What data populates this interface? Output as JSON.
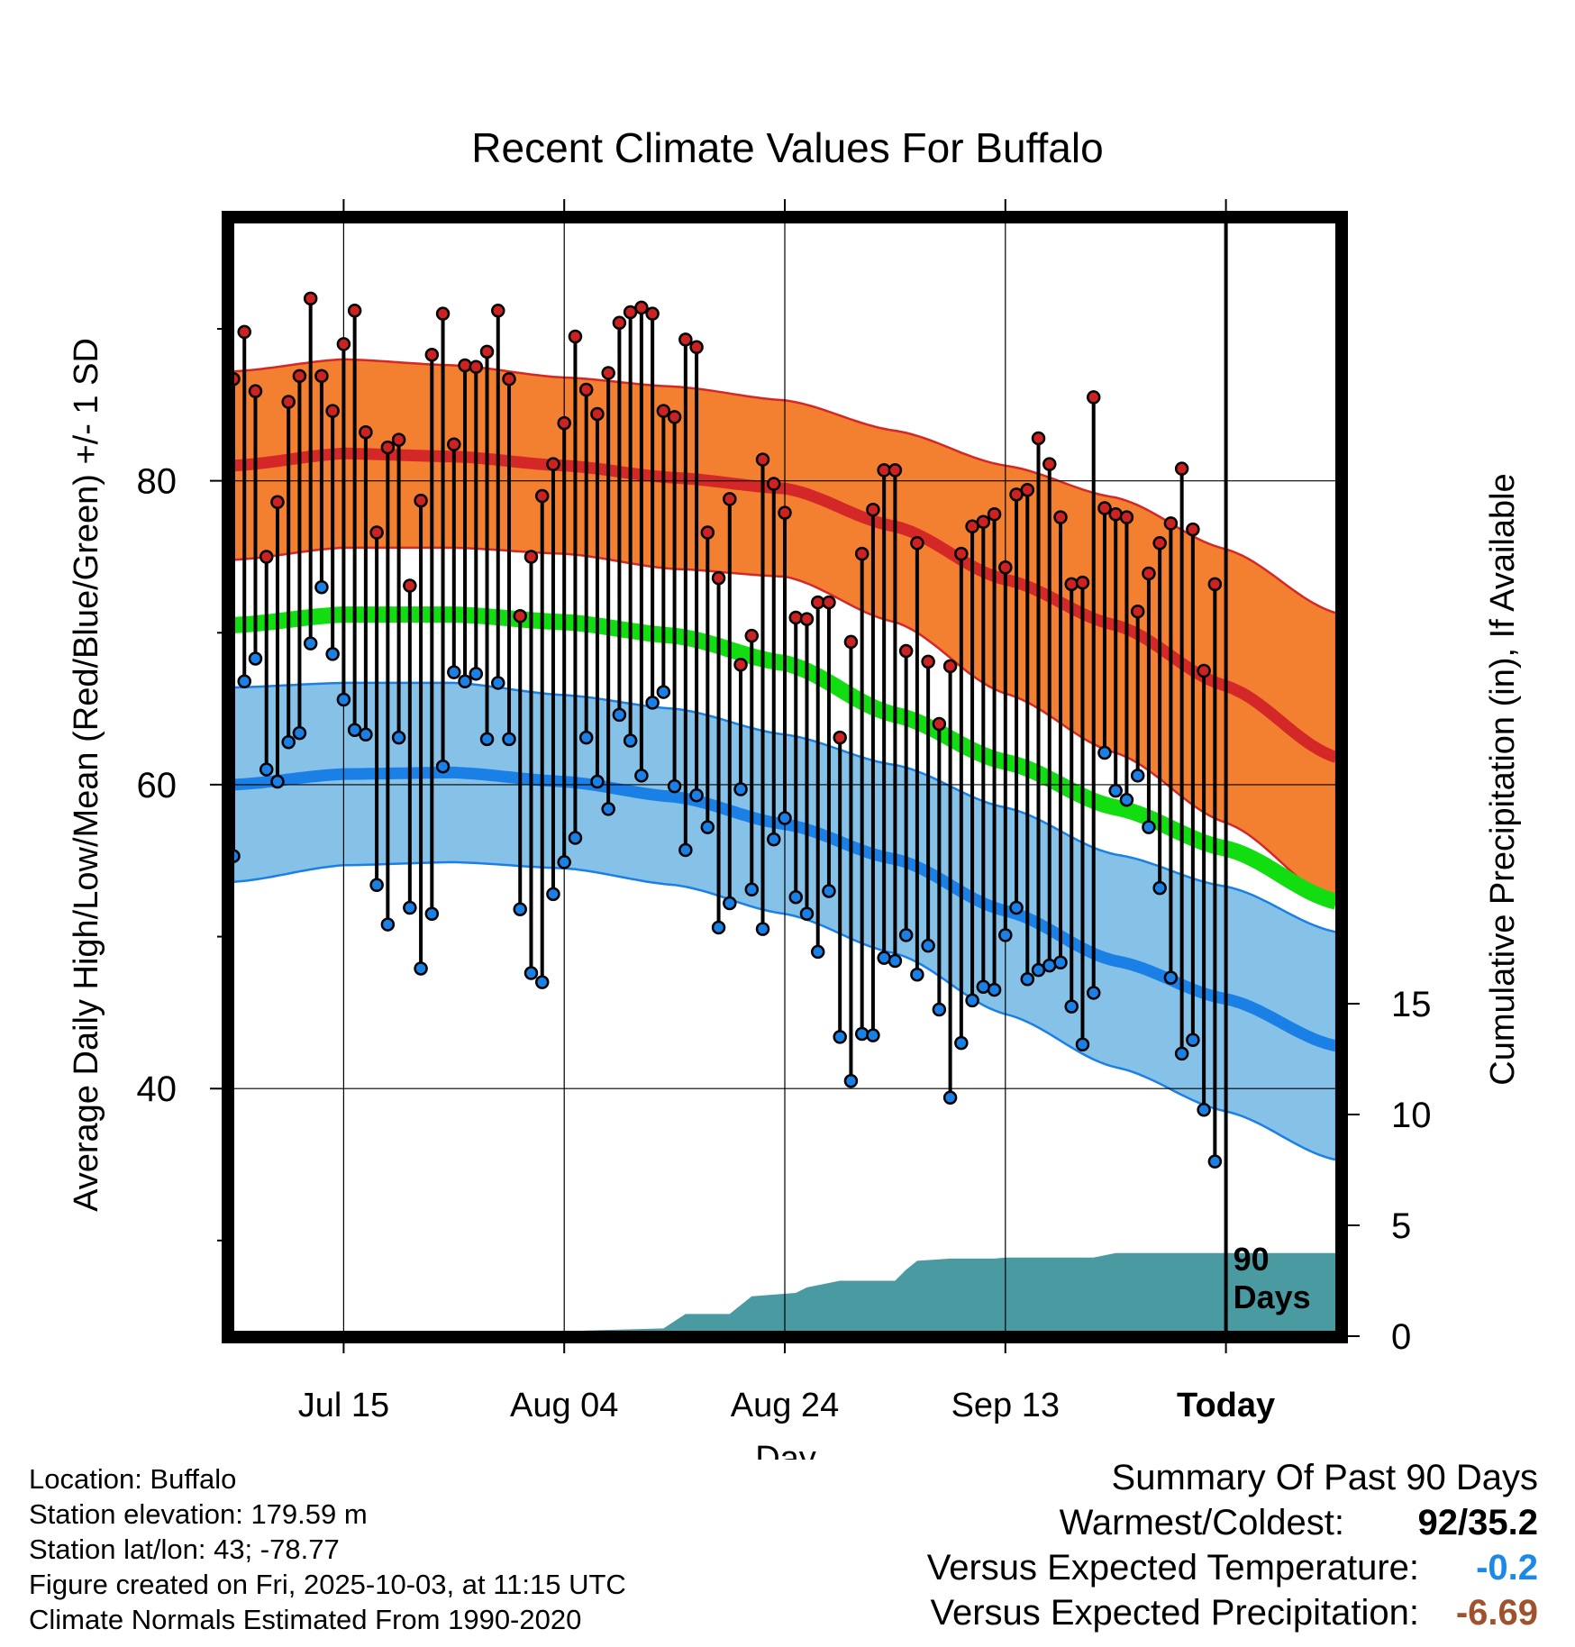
{
  "chart_data": {
    "type": "line",
    "title": "Recent Climate Values For Buffalo",
    "xlabel": "Day",
    "ylabel": "Average Daily High/Low/Mean (Red/Blue/Green) +/- 1 SD",
    "y2label": "Cumulative Precipitation (in), If Available",
    "ylim": [
      24,
      97
    ],
    "y2lim": [
      0,
      20
    ],
    "x_ticks": [
      {
        "day": 10,
        "label": "Jul 15"
      },
      {
        "day": 30,
        "label": "Aug 04"
      },
      {
        "day": 50,
        "label": "Aug 24"
      },
      {
        "day": 70,
        "label": "Sep 13"
      },
      {
        "day": 90,
        "label": "Today"
      }
    ],
    "y_ticks": [
      {
        "value": 40,
        "label": "40"
      },
      {
        "value": 60,
        "label": "60"
      },
      {
        "value": 80,
        "label": "80"
      }
    ],
    "y2_ticks": [
      {
        "value": 0,
        "label": "0"
      },
      {
        "value": 5,
        "label": "5"
      },
      {
        "value": 10,
        "label": "10"
      },
      {
        "value": 15,
        "label": "15"
      }
    ],
    "window_label_line1": "90",
    "window_label_line2": "Days",
    "normals": {
      "day": [
        0,
        10,
        20,
        30,
        40,
        50,
        60,
        70,
        80,
        90,
        100
      ],
      "high_mean": [
        81.0,
        81.8,
        81.6,
        81.0,
        80.2,
        79.5,
        77.0,
        73.5,
        70.5,
        66.5,
        61.8
      ],
      "high_sd": [
        6.2,
        6.2,
        6.0,
        5.8,
        6.0,
        5.8,
        6.3,
        7.5,
        8.4,
        9.0,
        9.5
      ],
      "mean_mean": [
        70.5,
        71.2,
        71.2,
        70.7,
        69.8,
        68.0,
        64.6,
        61.5,
        58.5,
        55.8,
        52.3
      ],
      "low_mean": [
        60.0,
        60.7,
        60.8,
        60.2,
        59.2,
        57.4,
        55.1,
        51.7,
        48.4,
        45.9,
        42.8
      ],
      "low_sd": [
        6.4,
        6.0,
        5.9,
        5.7,
        5.8,
        5.9,
        6.2,
        6.8,
        7.0,
        7.4,
        7.5
      ]
    },
    "series": [
      {
        "name": "Daily High",
        "color": "#cc2222",
        "values": [
          86.7,
          89.8,
          85.9,
          75.0,
          78.6,
          85.2,
          86.9,
          92.0,
          86.9,
          84.6,
          89.0,
          91.2,
          83.2,
          76.6,
          82.2,
          82.7,
          73.1,
          78.7,
          88.3,
          91.0,
          82.4,
          87.6,
          87.5,
          88.5,
          91.2,
          86.7,
          71.1,
          75.0,
          79.0,
          81.1,
          83.8,
          89.5,
          86.0,
          84.4,
          87.1,
          90.4,
          91.1,
          91.4,
          91.0,
          84.6,
          84.2,
          89.3,
          88.8,
          76.6,
          73.6,
          78.8,
          67.9,
          69.8,
          81.4,
          79.8,
          77.9,
          71.0,
          70.9,
          72.0,
          72.0,
          63.1,
          69.4,
          75.2,
          78.1,
          80.7,
          80.7,
          68.8,
          75.9,
          68.1,
          64.0,
          67.8,
          75.2,
          77.0,
          77.3,
          77.8,
          74.3,
          79.1,
          79.4,
          82.8,
          81.1,
          77.6,
          73.2,
          73.3,
          85.5,
          78.2,
          77.8,
          77.6,
          71.4,
          73.9,
          75.9,
          77.2,
          80.8,
          76.8,
          67.5,
          73.2
        ]
      },
      {
        "name": "Daily Low",
        "color": "#1a80e6",
        "values": [
          55.3,
          66.8,
          68.3,
          61.0,
          60.2,
          62.8,
          63.4,
          69.3,
          73.0,
          68.6,
          65.6,
          63.6,
          63.3,
          53.4,
          50.8,
          63.1,
          51.9,
          47.9,
          51.5,
          61.2,
          67.4,
          66.8,
          67.3,
          63.0,
          66.7,
          63.0,
          51.8,
          47.6,
          47.0,
          52.8,
          54.9,
          56.5,
          63.1,
          60.2,
          58.4,
          64.6,
          62.9,
          60.6,
          65.4,
          66.1,
          59.9,
          55.7,
          59.3,
          57.2,
          50.6,
          52.2,
          59.7,
          53.1,
          50.5,
          56.4,
          57.8,
          52.6,
          51.5,
          49.0,
          53.0,
          43.4,
          40.5,
          43.6,
          43.5,
          48.6,
          48.4,
          50.1,
          47.5,
          49.4,
          45.2,
          39.4,
          43.0,
          45.8,
          46.7,
          46.5,
          50.1,
          51.9,
          47.2,
          47.8,
          48.1,
          48.3,
          45.4,
          42.9,
          46.3,
          62.1,
          59.6,
          59.0,
          60.6,
          57.2,
          53.2,
          47.3,
          42.3,
          43.2,
          38.6,
          35.2
        ]
      },
      {
        "name": "Cumulative Precipitation",
        "color": "#4a9aa2",
        "day": [
          0,
          20,
          27,
          32,
          39,
          41,
          45,
          47,
          51,
          52,
          55,
          60,
          61,
          62,
          65,
          69,
          70,
          71,
          72,
          78,
          79,
          80,
          90,
          100
        ],
        "values": [
          0,
          0,
          0.15,
          0.25,
          0.35,
          1.0,
          1.0,
          1.8,
          1.95,
          2.2,
          2.5,
          2.5,
          3.0,
          3.4,
          3.5,
          3.5,
          3.55,
          3.55,
          3.55,
          3.55,
          3.65,
          3.75,
          3.75,
          3.75
        ]
      }
    ]
  },
  "footer": {
    "location": "Location: Buffalo",
    "elevation": "Station elevation: 179.59 m",
    "latlon": "Station lat/lon: 43; -78.77",
    "created": "Figure created on Fri, 2025-10-03, at 11:15 UTC",
    "normals": "Climate Normals Estimated From 1990-2020"
  },
  "summary": {
    "heading": "Summary Of Past 90 Days",
    "warmest_label": "Warmest/Coldest:",
    "warmest_value": "92/35.2",
    "temp_label": "Versus Expected Temperature:",
    "temp_value": "-0.2",
    "temp_color": "#1a8ae6",
    "precip_label": "Versus Expected Precipitation:",
    "precip_value": "-6.69",
    "precip_color": "#a0522d"
  }
}
